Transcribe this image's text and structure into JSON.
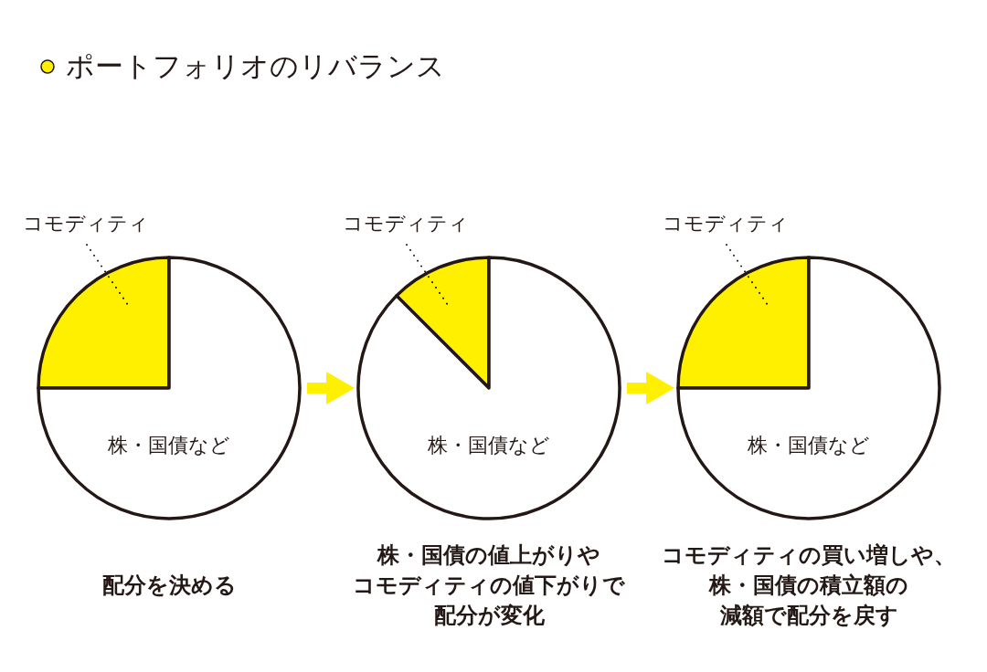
{
  "chart_data": [
    {
      "type": "pie",
      "title": "ポートフォリオのリバランス",
      "categories": [
        "コモディティ",
        "株・国債など"
      ],
      "values": [
        25,
        75
      ],
      "colors": [
        "#fff000",
        "#ffffff"
      ],
      "annotations": [
        "配分を決める"
      ]
    },
    {
      "type": "pie",
      "categories": [
        "コモディティ",
        "株・国債など"
      ],
      "values": [
        12.5,
        87.5
      ],
      "colors": [
        "#fff000",
        "#ffffff"
      ],
      "annotations": [
        "株・国債の値上がりや",
        "コモディティの値下がりで",
        "配分が変化"
      ]
    },
    {
      "type": "pie",
      "categories": [
        "コモディティ",
        "株・国債など"
      ],
      "values": [
        25,
        75
      ],
      "colors": [
        "#fff000",
        "#ffffff"
      ],
      "annotations": [
        "コモディティの買い増しや、",
        "株・国債の積立額の",
        "減額で配分を戻す"
      ]
    }
  ]
}
